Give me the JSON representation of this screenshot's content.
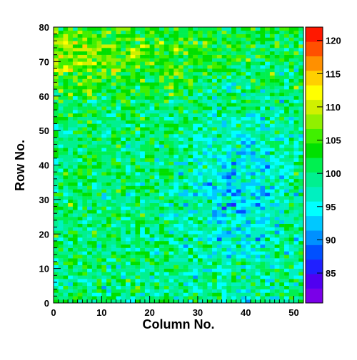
{
  "chart_data": {
    "type": "heatmap",
    "title": "",
    "xlabel": "Column No.",
    "ylabel": "Row No.",
    "xlim": [
      0,
      52
    ],
    "ylim": [
      0,
      80
    ],
    "n_columns": 52,
    "n_rows": 80,
    "x_ticks": [
      "0",
      "10",
      "20",
      "30",
      "40",
      "50"
    ],
    "y_ticks": [
      "0",
      "10",
      "20",
      "30",
      "40",
      "50",
      "60",
      "70",
      "80"
    ],
    "colorbar": {
      "range": [
        80.5,
        122
      ],
      "ticks": [
        "85",
        "90",
        "95",
        "100",
        "105",
        "110",
        "115",
        "120"
      ],
      "tick_values": [
        85,
        90,
        95,
        100,
        105,
        110,
        115,
        120
      ],
      "band_colors": [
        "#7a00e8",
        "#5000f0",
        "#2020ff",
        "#0050ff",
        "#0090ff",
        "#00c8ff",
        "#00ffff",
        "#00f0c0",
        "#00f090",
        "#00f050",
        "#00e000",
        "#40f000",
        "#90f000",
        "#d0f000",
        "#ffff00",
        "#ffd000",
        "#ff9000",
        "#ff5000",
        "#ff1800"
      ]
    },
    "value_summary": {
      "mean": 99,
      "description": "Per-cell values range roughly 82-122; higher (green/yellow, ~103-110) toward upper-left, lower (cyan/blue, ~88-97) in the middle-right region around columns 28-48, rows 10-55."
    }
  }
}
